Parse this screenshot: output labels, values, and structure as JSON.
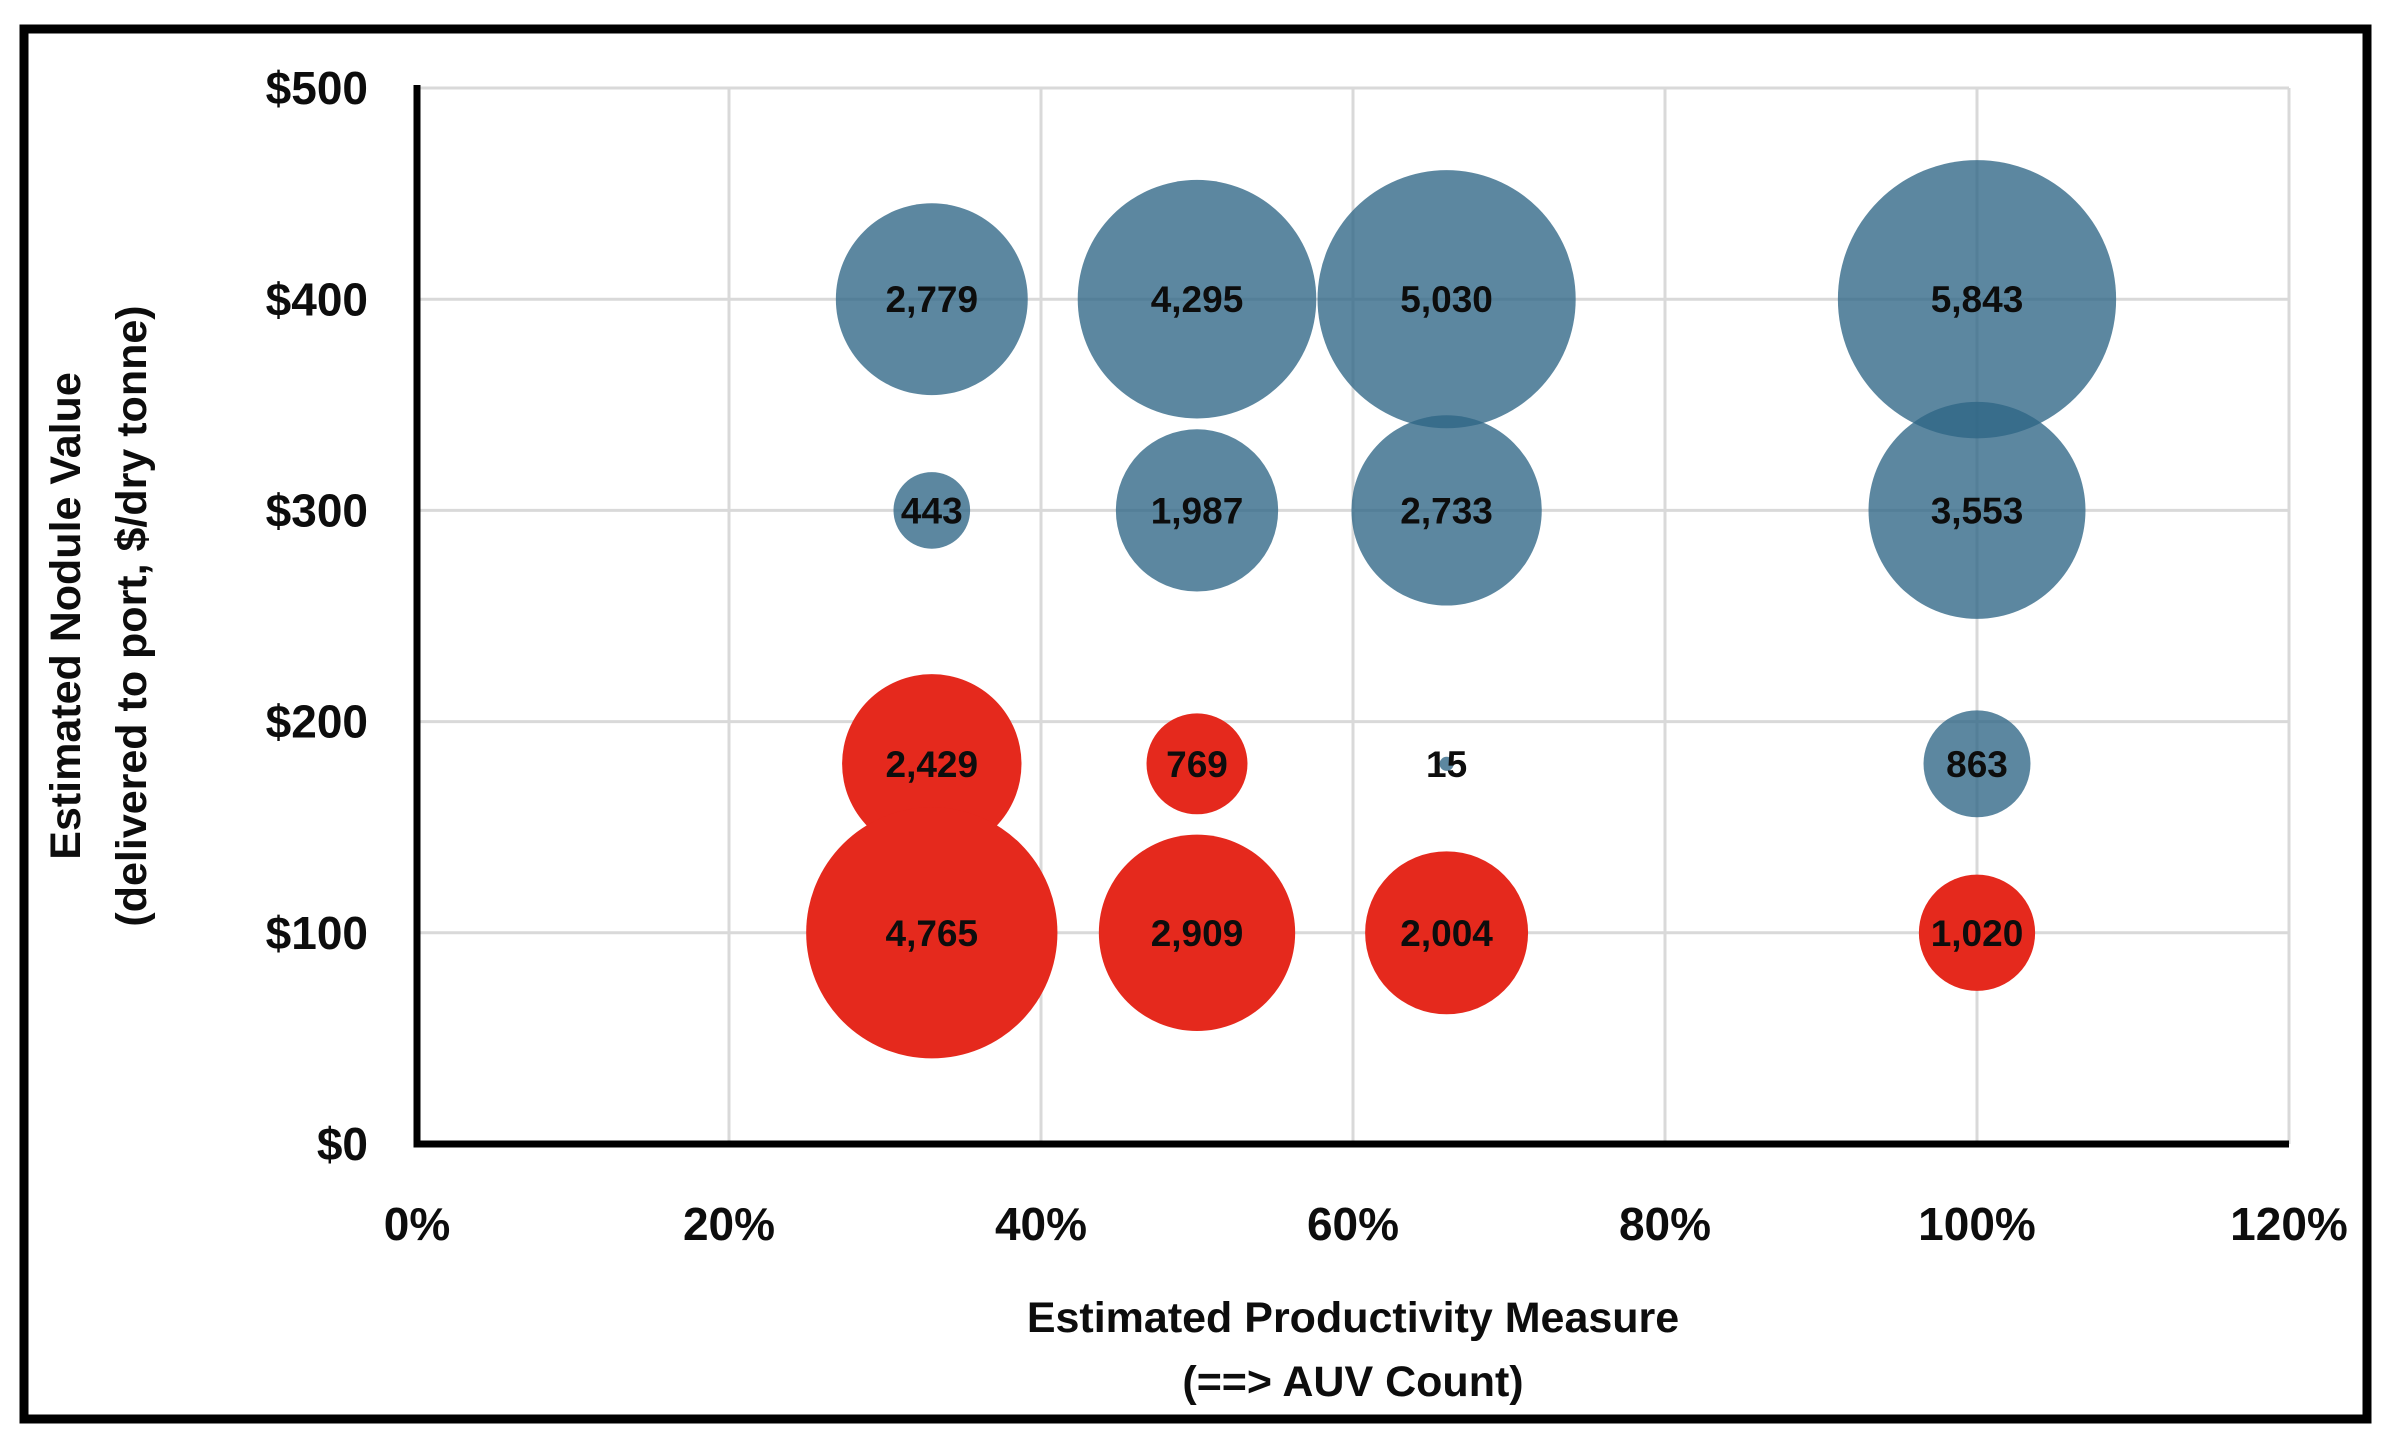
{
  "chart": {
    "title": "",
    "background_color": "#FFFFFF",
    "border_color": "#000000",
    "grid_color": "#D9D9D9",
    "axis_line_color": "#000000",
    "label_color": "#0D0D0D",
    "x_axis": {
      "title_line1": "Estimated Productivity Measure",
      "title_line2": "(==> AUV Count)",
      "tick_labels": [
        "0%",
        "20%",
        "40%",
        "60%",
        "80%",
        "100%",
        "120%"
      ],
      "tick_values": [
        0,
        20,
        40,
        60,
        80,
        100,
        120
      ]
    },
    "y_axis": {
      "title_line1": "Estimated Nodule Value",
      "title_line2": "(delivered to port, $/dry tonne)",
      "tick_labels": [
        "$0",
        "$100",
        "$200",
        "$300",
        "$400",
        "$500"
      ],
      "tick_values": [
        0,
        100,
        200,
        300,
        400,
        500
      ]
    }
  },
  "chart_data": {
    "type": "scatter",
    "subtype": "bubble",
    "title": "",
    "xlabel": "Estimated Productivity Measure (==> AUV Count)",
    "ylabel": "Estimated Nodule Value (delivered to port, $/dry tonne)",
    "xlim": [
      0,
      120
    ],
    "ylim": [
      0,
      500
    ],
    "grid": true,
    "legend": "none",
    "size_encoding": "bubble area proportional to labeled value",
    "series": [
      {
        "name": "blue-bubbles",
        "color": "#2E6585",
        "opacity": 0.78,
        "points": [
          {
            "x": 33,
            "y": 400,
            "value": 2779,
            "label": "2,779"
          },
          {
            "x": 50,
            "y": 400,
            "value": 4295,
            "label": "4,295"
          },
          {
            "x": 66,
            "y": 400,
            "value": 5030,
            "label": "5,030"
          },
          {
            "x": 100,
            "y": 400,
            "value": 5843,
            "label": "5,843"
          },
          {
            "x": 33,
            "y": 300,
            "value": 443,
            "label": "443"
          },
          {
            "x": 50,
            "y": 300,
            "value": 1987,
            "label": "1,987"
          },
          {
            "x": 66,
            "y": 300,
            "value": 2733,
            "label": "2,733"
          },
          {
            "x": 100,
            "y": 300,
            "value": 3553,
            "label": "3,553"
          },
          {
            "x": 66,
            "y": 180,
            "value": 15,
            "label": "15"
          },
          {
            "x": 100,
            "y": 180,
            "value": 863,
            "label": "863"
          }
        ]
      },
      {
        "name": "red-bubbles",
        "color": "#E5291D",
        "opacity": 1,
        "points": [
          {
            "x": 33,
            "y": 180,
            "value": 2429,
            "label": "2,429"
          },
          {
            "x": 50,
            "y": 180,
            "value": 769,
            "label": "769"
          },
          {
            "x": 33,
            "y": 100,
            "value": 4765,
            "label": "4,765"
          },
          {
            "x": 50,
            "y": 100,
            "value": 2909,
            "label": "2,909"
          },
          {
            "x": 66,
            "y": 100,
            "value": 2004,
            "label": "2,004"
          },
          {
            "x": 100,
            "y": 100,
            "value": 1020,
            "label": "1,020"
          }
        ]
      }
    ]
  }
}
